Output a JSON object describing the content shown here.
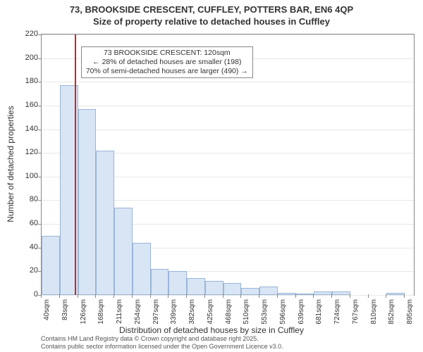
{
  "chart": {
    "type": "histogram",
    "title_line1": "73, BROOKSIDE CRESCENT, CUFFLEY, POTTERS BAR, EN6 4QP",
    "title_line2": "Size of property relative to detached houses in Cuffley",
    "title_fontsize": 13,
    "ylabel": "Number of detached properties",
    "xlabel": "Distribution of detached houses by size in Cuffley",
    "label_fontsize": 12,
    "background_color": "#ffffff",
    "grid_color": "#e8e8e8",
    "axis_color": "#888888",
    "bar_fill": "#d8e5f5",
    "bar_border": "#9ab5d6",
    "ref_line_color": "#d62020",
    "ref_line_x": 120,
    "ylim": [
      0,
      220
    ],
    "ytick_step": 20,
    "yticks": [
      0,
      20,
      40,
      60,
      80,
      100,
      120,
      140,
      160,
      180,
      200,
      220
    ],
    "xlim": [
      40,
      916
    ],
    "xticks": [
      "40sqm",
      "83sqm",
      "126sqm",
      "168sqm",
      "211sqm",
      "254sqm",
      "297sqm",
      "339sqm",
      "382sqm",
      "425sqm",
      "468sqm",
      "510sqm",
      "553sqm",
      "596sqm",
      "639sqm",
      "681sqm",
      "724sqm",
      "767sqm",
      "810sqm",
      "852sqm",
      "895sqm"
    ],
    "xtick_values": [
      40,
      83,
      126,
      168,
      211,
      254,
      297,
      339,
      382,
      425,
      468,
      510,
      553,
      596,
      639,
      681,
      724,
      767,
      810,
      852,
      895
    ],
    "bars": [
      {
        "x0": 40,
        "x1": 83,
        "count": 50
      },
      {
        "x0": 83,
        "x1": 126,
        "count": 177
      },
      {
        "x0": 126,
        "x1": 168,
        "count": 157
      },
      {
        "x0": 168,
        "x1": 211,
        "count": 122
      },
      {
        "x0": 211,
        "x1": 254,
        "count": 74
      },
      {
        "x0": 254,
        "x1": 297,
        "count": 44
      },
      {
        "x0": 297,
        "x1": 339,
        "count": 22
      },
      {
        "x0": 339,
        "x1": 382,
        "count": 20
      },
      {
        "x0": 382,
        "x1": 425,
        "count": 14
      },
      {
        "x0": 425,
        "x1": 468,
        "count": 12
      },
      {
        "x0": 468,
        "x1": 510,
        "count": 10
      },
      {
        "x0": 510,
        "x1": 553,
        "count": 6
      },
      {
        "x0": 553,
        "x1": 596,
        "count": 7
      },
      {
        "x0": 596,
        "x1": 639,
        "count": 2
      },
      {
        "x0": 639,
        "x1": 681,
        "count": 1
      },
      {
        "x0": 681,
        "x1": 724,
        "count": 3
      },
      {
        "x0": 724,
        "x1": 767,
        "count": 3
      },
      {
        "x0": 767,
        "x1": 810,
        "count": 0
      },
      {
        "x0": 810,
        "x1": 852,
        "count": 0
      },
      {
        "x0": 852,
        "x1": 895,
        "count": 2
      }
    ],
    "annotation": {
      "line1": "73 BROOKSIDE CRESCENT: 120sqm",
      "line2": "← 28% of detached houses are smaller (198)",
      "line3": "70% of semi-detached houses are larger (490) →",
      "x": 126,
      "y_top": 210,
      "fontsize": 10.5,
      "border_color": "#888888",
      "bg_color": "#ffffff"
    },
    "footer_line1": "Contains HM Land Registry data © Crown copyright and database right 2025.",
    "footer_line2": "Contains public sector information licensed under the Open Government Licence v3.0.",
    "footer_fontsize": 9
  }
}
